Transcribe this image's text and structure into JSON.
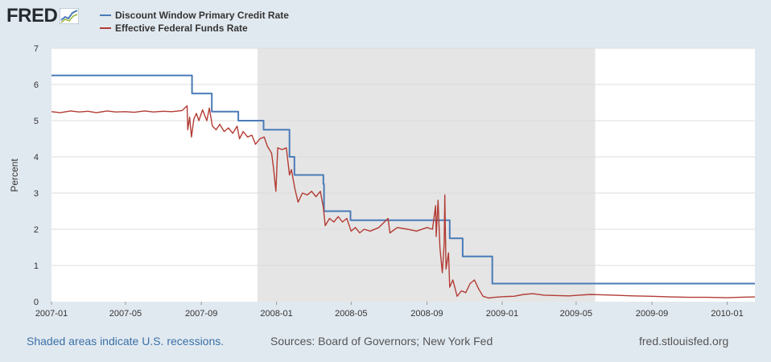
{
  "header": {
    "logo_text": "FRED",
    "logo_icon": "line-graph-icon"
  },
  "colors": {
    "series1": "#4a7bb7",
    "series2": "#b33c35",
    "recession": "#e5e5e5",
    "gridline": "#dcdcdc",
    "background": "#e1e9f0",
    "plot_bg": "#ffffff",
    "link": "#3a71a6"
  },
  "footer": {
    "note": "Shaded areas indicate U.S. recessions.",
    "sources": "Sources: Board of Governors; New York Fed",
    "url": "fred.stlouisfed.org"
  },
  "chart_data": {
    "type": "line",
    "title": "",
    "xlabel": "",
    "ylabel": "Percent",
    "ylim": [
      0,
      7
    ],
    "yticks": [
      0,
      1,
      2,
      3,
      4,
      5,
      6,
      7
    ],
    "xlim": [
      "2007-01-01",
      "2010-02-15"
    ],
    "xticks": [
      "2007-01",
      "2007-05",
      "2007-09",
      "2008-01",
      "2008-05",
      "2008-09",
      "2009-01",
      "2009-05",
      "2009-09",
      "2010-01"
    ],
    "grid": true,
    "legend_position": "top-left",
    "recessions": [
      {
        "start": "2007-12-01",
        "end": "2009-06-01"
      }
    ],
    "series": [
      {
        "name": "Discount Window Primary Credit Rate",
        "shape": "step",
        "points": [
          [
            "2007-01-01",
            6.25
          ],
          [
            "2007-08-17",
            5.75
          ],
          [
            "2007-09-18",
            5.25
          ],
          [
            "2007-10-31",
            5.0
          ],
          [
            "2007-12-11",
            4.75
          ],
          [
            "2008-01-22",
            4.0
          ],
          [
            "2008-01-30",
            3.5
          ],
          [
            "2008-03-17",
            3.25
          ],
          [
            "2008-03-18",
            2.5
          ],
          [
            "2008-04-30",
            2.25
          ],
          [
            "2008-10-08",
            1.75
          ],
          [
            "2008-10-29",
            1.25
          ],
          [
            "2008-12-16",
            0.5
          ],
          [
            "2010-02-15",
            0.5
          ]
        ]
      },
      {
        "name": "Effective Federal Funds Rate",
        "shape": "line",
        "points": [
          [
            "2007-01-01",
            5.25
          ],
          [
            "2007-01-15",
            5.22
          ],
          [
            "2007-02-01",
            5.27
          ],
          [
            "2007-02-15",
            5.24
          ],
          [
            "2007-03-01",
            5.26
          ],
          [
            "2007-03-15",
            5.22
          ],
          [
            "2007-04-01",
            5.27
          ],
          [
            "2007-04-15",
            5.24
          ],
          [
            "2007-05-01",
            5.25
          ],
          [
            "2007-05-15",
            5.23
          ],
          [
            "2007-06-01",
            5.27
          ],
          [
            "2007-06-15",
            5.24
          ],
          [
            "2007-07-01",
            5.26
          ],
          [
            "2007-07-15",
            5.25
          ],
          [
            "2007-08-01",
            5.28
          ],
          [
            "2007-08-09",
            5.41
          ],
          [
            "2007-08-10",
            4.75
          ],
          [
            "2007-08-13",
            5.1
          ],
          [
            "2007-08-16",
            4.55
          ],
          [
            "2007-08-20",
            5.05
          ],
          [
            "2007-08-24",
            5.2
          ],
          [
            "2007-08-28",
            5.0
          ],
          [
            "2007-09-03",
            5.3
          ],
          [
            "2007-09-10",
            5.0
          ],
          [
            "2007-09-14",
            5.35
          ],
          [
            "2007-09-19",
            4.85
          ],
          [
            "2007-09-25",
            4.75
          ],
          [
            "2007-10-01",
            4.9
          ],
          [
            "2007-10-08",
            4.7
          ],
          [
            "2007-10-15",
            4.8
          ],
          [
            "2007-10-22",
            4.65
          ],
          [
            "2007-10-29",
            4.85
          ],
          [
            "2007-11-02",
            4.5
          ],
          [
            "2007-11-08",
            4.7
          ],
          [
            "2007-11-15",
            4.55
          ],
          [
            "2007-11-22",
            4.6
          ],
          [
            "2007-11-28",
            4.35
          ],
          [
            "2007-12-05",
            4.5
          ],
          [
            "2007-12-12",
            4.55
          ],
          [
            "2007-12-17",
            4.3
          ],
          [
            "2007-12-24",
            4.1
          ],
          [
            "2007-12-27",
            3.7
          ],
          [
            "2007-12-31",
            3.05
          ],
          [
            "2008-01-03",
            4.25
          ],
          [
            "2008-01-10",
            4.2
          ],
          [
            "2008-01-17",
            4.25
          ],
          [
            "2008-01-22",
            3.5
          ],
          [
            "2008-01-25",
            3.65
          ],
          [
            "2008-01-31",
            3.1
          ],
          [
            "2008-02-05",
            2.75
          ],
          [
            "2008-02-12",
            3.0
          ],
          [
            "2008-02-20",
            2.95
          ],
          [
            "2008-02-27",
            3.05
          ],
          [
            "2008-03-05",
            2.9
          ],
          [
            "2008-03-12",
            3.05
          ],
          [
            "2008-03-17",
            2.6
          ],
          [
            "2008-03-20",
            2.1
          ],
          [
            "2008-03-27",
            2.3
          ],
          [
            "2008-04-03",
            2.2
          ],
          [
            "2008-04-10",
            2.35
          ],
          [
            "2008-04-17",
            2.2
          ],
          [
            "2008-04-24",
            2.3
          ],
          [
            "2008-05-01",
            1.95
          ],
          [
            "2008-05-08",
            2.05
          ],
          [
            "2008-05-15",
            1.9
          ],
          [
            "2008-05-22",
            2.0
          ],
          [
            "2008-06-01",
            1.95
          ],
          [
            "2008-06-15",
            2.05
          ],
          [
            "2008-06-30",
            2.3
          ],
          [
            "2008-07-03",
            1.9
          ],
          [
            "2008-07-15",
            2.05
          ],
          [
            "2008-08-01",
            2.0
          ],
          [
            "2008-08-15",
            1.95
          ],
          [
            "2008-09-01",
            2.05
          ],
          [
            "2008-09-10",
            2.0
          ],
          [
            "2008-09-15",
            2.65
          ],
          [
            "2008-09-16",
            1.8
          ],
          [
            "2008-09-19",
            2.8
          ],
          [
            "2008-09-22",
            1.5
          ],
          [
            "2008-09-26",
            0.8
          ],
          [
            "2008-09-29",
            1.6
          ],
          [
            "2008-09-30",
            2.95
          ],
          [
            "2008-10-02",
            0.9
          ],
          [
            "2008-10-06",
            1.35
          ],
          [
            "2008-10-08",
            0.4
          ],
          [
            "2008-10-13",
            0.6
          ],
          [
            "2008-10-20",
            0.15
          ],
          [
            "2008-10-27",
            0.3
          ],
          [
            "2008-11-03",
            0.25
          ],
          [
            "2008-11-10",
            0.5
          ],
          [
            "2008-11-17",
            0.6
          ],
          [
            "2008-11-24",
            0.35
          ],
          [
            "2008-12-01",
            0.15
          ],
          [
            "2008-12-10",
            0.1
          ],
          [
            "2008-12-20",
            0.12
          ],
          [
            "2009-01-05",
            0.14
          ],
          [
            "2009-01-20",
            0.15
          ],
          [
            "2009-02-05",
            0.2
          ],
          [
            "2009-02-20",
            0.22
          ],
          [
            "2009-03-10",
            0.18
          ],
          [
            "2009-04-01",
            0.17
          ],
          [
            "2009-04-20",
            0.16
          ],
          [
            "2009-05-05",
            0.18
          ],
          [
            "2009-05-25",
            0.2
          ],
          [
            "2009-06-10",
            0.19
          ],
          [
            "2009-07-01",
            0.18
          ],
          [
            "2009-08-01",
            0.16
          ],
          [
            "2009-09-01",
            0.15
          ],
          [
            "2009-10-01",
            0.13
          ],
          [
            "2009-11-01",
            0.12
          ],
          [
            "2009-12-01",
            0.12
          ],
          [
            "2010-01-01",
            0.11
          ],
          [
            "2010-01-20",
            0.12
          ],
          [
            "2010-02-15",
            0.13
          ]
        ]
      }
    ]
  }
}
